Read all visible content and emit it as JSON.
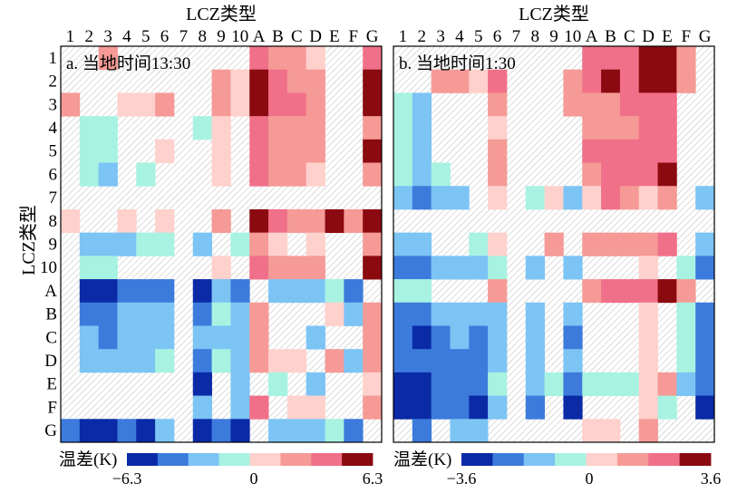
{
  "chart_data": {
    "type": "heatmap",
    "ylabel": "LCZ类型",
    "categories": [
      "1",
      "2",
      "3",
      "4",
      "5",
      "6",
      "7",
      "8",
      "9",
      "10",
      "A",
      "B",
      "C",
      "D",
      "E",
      "F",
      "G"
    ],
    "no_data_style": "gray-hatched",
    "colorbar_label": "温差(K)",
    "palette": {
      "-4": "#0a2aa6",
      "-3": "#3c7bdc",
      "-2": "#7cc4f4",
      "-1": "#a8f2e2",
      "1": "#ffd1cc",
      "2": "#f59a96",
      "3": "#f07089",
      "4": "#8b0a10"
    },
    "panels": [
      {
        "title": "LCZ类型",
        "annotation": "a. 当地时间13:30",
        "colorbar": {
          "ticks": [
            "−6.3",
            "0",
            "6.3"
          ],
          "range": [
            -6.3,
            6.3
          ]
        },
        "rows": [
          "0 0 2 0 0 0 0 0 0 0 3 2 2 1 0 0 3",
          "0 0 0 0 0 0 0 0 2 1 4 3 2 2 0 0 4",
          "2 0 0 1 1 2 0 0 2 1 4 3 3 2 0 0 4",
          "0 -1 -1 0 0 0 0 -1 1 0 3 2 2 2 0 0 2",
          "0 -1 -1 0 0 1 0 0 1 0 3 2 2 2 0 0 4",
          "0 -1 -2 0 -1 0 0 0 1 0 3 2 2 1 0 0 2",
          "0 0 0 0 0 0 0 0 0 0 0 0 0 0 0 0 0",
          "1 0 0 1 0 1 0 0 2 0 4 3 2 2 4 2 4",
          "0 -2 -2 -2 -1 -1 0 -2 0 -1 2 1 0 1 0 0 2",
          "0 -1 -1 0 0 0 0 0 1 0 3 2 2 2 0 0 4",
          "0 -4 -4 -3 -3 -3 0 -4 -2 -3 0 -2 -2 -2 -1 -3 0",
          "0 -3 -3 -2 -2 -2 0 -3 -1 -2 2 0 0 0 1 -2 2",
          "0 -2 -3 -2 -2 -2 0 -2 -2 -2 2 0 0 -2 0 0 2",
          "0 -2 -2 -2 -2 -1 0 -3 -1 -2 2 1 1 0 2 -2 2",
          "0 0 0 0 0 0 0 -4 0 -2 0 -1 0 -2 0 0 1",
          "0 0 0 0 0 0 0 -2 0 -2 3 0 1 1 0 0 2",
          "-3 -4 -4 -3 -4 -2 0 -4 -3 -4 0 -2 -2 -2 -1 -3 0"
        ]
      },
      {
        "title": "LCZ类型",
        "annotation": "b. 当地时间1:30",
        "colorbar": {
          "ticks": [
            "−3.6",
            "0",
            "3.6"
          ],
          "range": [
            -3.6,
            3.6
          ]
        },
        "rows": [
          "0 0 0 0 0 0 0 0 0 0 3 3 3 4 4 2 0",
          "0 0 2 2 1 3 0 0 0 2 3 4 3 4 4 2 0",
          "-1 -2 0 0 0 2 0 0 0 2 2 2 3 3 3 0 0",
          "-1 -2 0 0 0 1 0 0 0 0 2 2 2 3 3 0 0",
          "-1 -2 0 0 0 2 0 0 0 0 3 3 3 3 3 0 0",
          "-1 -2 -1 0 0 2 0 0 0 0 2 3 3 3 4 0 0",
          "-2 -3 -2 -2 0 1 0 -1 1 -2 1 3 2 1 2 0 -2",
          "0 0 0 0 0 0 0 0 0 0 0 0 0 0 0 0 0",
          "-2 -2 0 0 -1 1 0 0 2 0 2 2 2 2 3 0 -2",
          "-3 -3 -2 -2 -2 -1 0 -2 0 -2 0 0 0 1 0 -1 -3",
          "-1 -1 0 0 0 2 0 0 0 0 2 3 3 3 4 2 0",
          "-3 -3 -2 -2 -2 -2 0 -2 0 -2 0 0 0 1 0 -1 -3",
          "-3 -4 -3 -2 -3 -2 0 -2 0 -3 0 0 0 1 0 -1 -3",
          "-3 -3 -3 -3 -3 -2 0 -2 0 -2 0 0 0 1 0 -1 -3",
          "-4 -4 -3 -3 -3 -1 0 -2 -1 -3 -1 -1 -1 1 2 -2 -3",
          "-4 -4 -3 -3 -4 -2 0 -3 0 -4 0 0 0 1 -1 0 -4",
          "0 -3 0 -2 -2 0 0 0 0 0 1 1 0 2 0 0 0"
        ]
      }
    ]
  }
}
